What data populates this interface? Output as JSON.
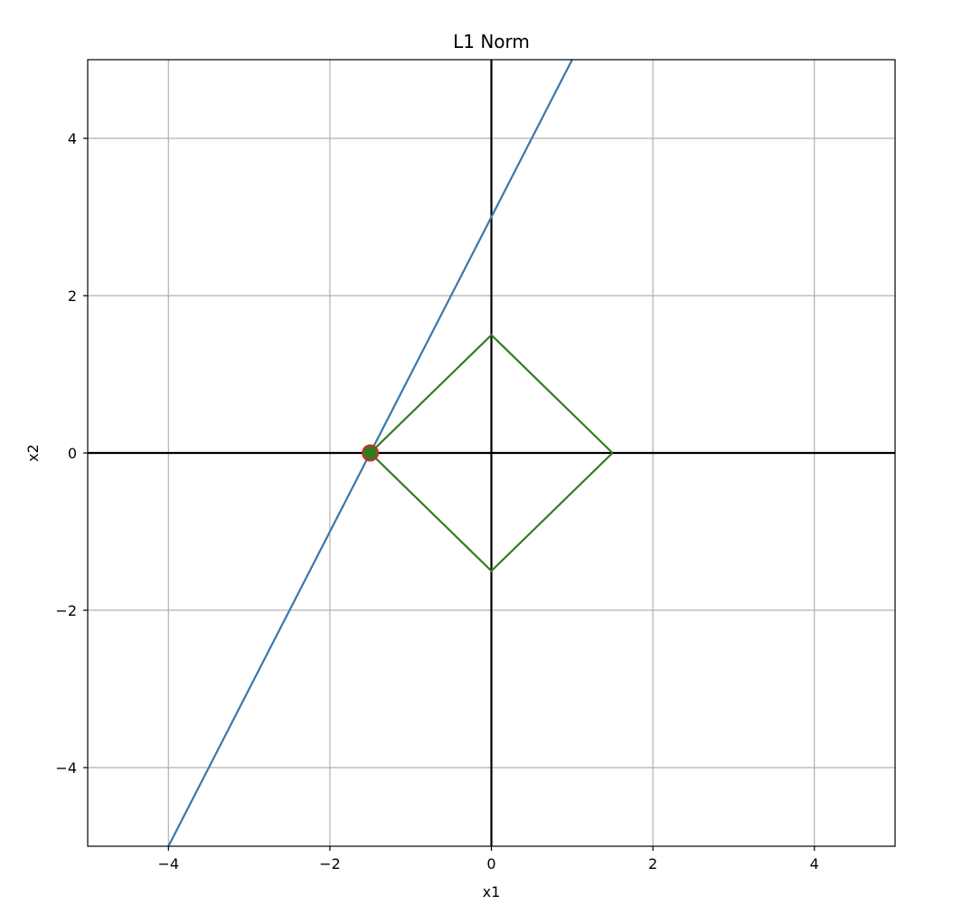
{
  "chart_data": {
    "type": "line",
    "title": "L1 Norm",
    "xlabel": "x1",
    "ylabel": "x2",
    "xlim": [
      -5,
      5
    ],
    "ylim": [
      -5,
      5
    ],
    "xticks": [
      -4,
      -2,
      0,
      2,
      4
    ],
    "yticks": [
      -4,
      -2,
      0,
      2,
      4
    ],
    "xtick_labels": [
      "−4",
      "−2",
      "0",
      "2",
      "4"
    ],
    "ytick_labels": [
      "−4",
      "−2",
      "0",
      "2",
      "4"
    ],
    "grid": true,
    "legend": "none",
    "series": [
      {
        "kind": "line",
        "color": "#3a76af",
        "x": [
          -4,
          1
        ],
        "y": [
          -5,
          5
        ]
      },
      {
        "kind": "polygon",
        "color": "#2e7d1c",
        "x": [
          1.5,
          0,
          -1.5,
          0,
          1.5
        ],
        "y": [
          0,
          1.5,
          0,
          -1.5,
          0
        ]
      },
      {
        "kind": "point",
        "color": "#2e7d1c",
        "edge_color": "#d62728",
        "x": [
          -1.5
        ],
        "y": [
          0
        ]
      }
    ],
    "reference_lines": [
      {
        "axis": "x",
        "value": 0,
        "color": "#000000"
      },
      {
        "axis": "y",
        "value": 0,
        "color": "#000000"
      }
    ],
    "colors": {
      "grid": "#b0b0b0",
      "frame": "#000000"
    }
  }
}
